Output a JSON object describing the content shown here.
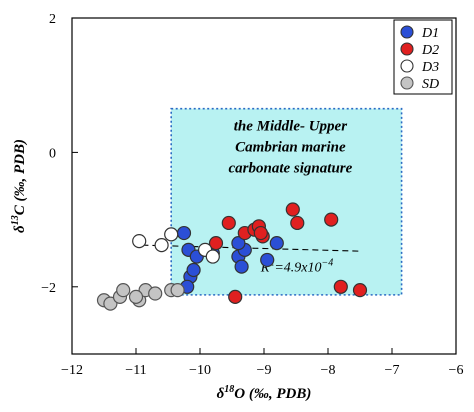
{
  "chart_data": {
    "type": "scatter",
    "title": "",
    "xlabel": "δ18O (‰, PDB)",
    "ylabel": "δ13C (‰, PDB)",
    "xlim": [
      -12,
      -6
    ],
    "ylim": [
      -3,
      2
    ],
    "xticks": [
      -12,
      -11,
      -10,
      -9,
      -8,
      -7,
      -6
    ],
    "xtick_labels": [
      "−12",
      "−11",
      "−10",
      "−9",
      "−8",
      "−7",
      "−6"
    ],
    "yticks": [
      -2,
      0,
      2
    ],
    "ytick_labels": [
      "−2",
      "0",
      "2"
    ],
    "grid": false,
    "legend_position": "top-right",
    "series": [
      {
        "name": "D1",
        "color": "#2b4fd6",
        "marker": "filled-circle",
        "x": [
          -10.25,
          -10.18,
          -10.05,
          -10.15,
          -10.2,
          -9.8,
          -9.4,
          -9.35,
          -9.3,
          -8.95,
          -9.4,
          -10.1,
          -8.8
        ],
        "y": [
          -1.2,
          -1.45,
          -1.55,
          -1.85,
          -2.0,
          -1.5,
          -1.55,
          -1.7,
          -1.45,
          -1.6,
          -1.35,
          -1.75,
          -1.35
        ]
      },
      {
        "name": "D2",
        "color": "#e02020",
        "marker": "filled-circle",
        "x": [
          -9.75,
          -9.55,
          -9.3,
          -9.15,
          -9.08,
          -9.02,
          -8.55,
          -8.48,
          -7.95,
          -7.8,
          -7.5,
          -9.45,
          -9.05
        ],
        "y": [
          -1.35,
          -1.05,
          -1.2,
          -1.15,
          -1.1,
          -1.25,
          -0.85,
          -1.05,
          -1.0,
          -2.0,
          -2.05,
          -2.15,
          -1.2
        ]
      },
      {
        "name": "D3",
        "color": "#ffffff",
        "marker": "open-circle",
        "x": [
          -10.95,
          -10.6,
          -10.45,
          -9.92,
          -9.8
        ],
        "y": [
          -1.32,
          -1.38,
          -1.22,
          -1.45,
          -1.55
        ]
      },
      {
        "name": "SD",
        "color": "#c4c4c4",
        "marker": "gray-circle",
        "x": [
          -11.5,
          -11.4,
          -11.25,
          -11.2,
          -10.95,
          -10.85,
          -10.7,
          -10.45,
          -10.35,
          -11.0
        ],
        "y": [
          -2.2,
          -2.25,
          -2.15,
          -2.05,
          -2.2,
          -2.05,
          -2.1,
          -2.05,
          -2.05,
          -2.15
        ]
      }
    ],
    "region": {
      "label_lines": [
        "the Middle- Upper",
        "Cambrian marine",
        "carbonate signature"
      ],
      "x_range": [
        -10.45,
        -6.85
      ],
      "y_range": [
        -2.12,
        0.65
      ],
      "fill_color": "#b8f2f2",
      "border_color": "#2a6bc4"
    },
    "trendline": {
      "x_range": [
        -10.9,
        -7.5
      ],
      "y_range": [
        -1.38,
        -1.47
      ],
      "style": "dashed",
      "annotation": "R2=4.9x10-4",
      "annotation_parts": [
        "R",
        "2",
        "=4.9x10",
        "−4"
      ]
    }
  }
}
